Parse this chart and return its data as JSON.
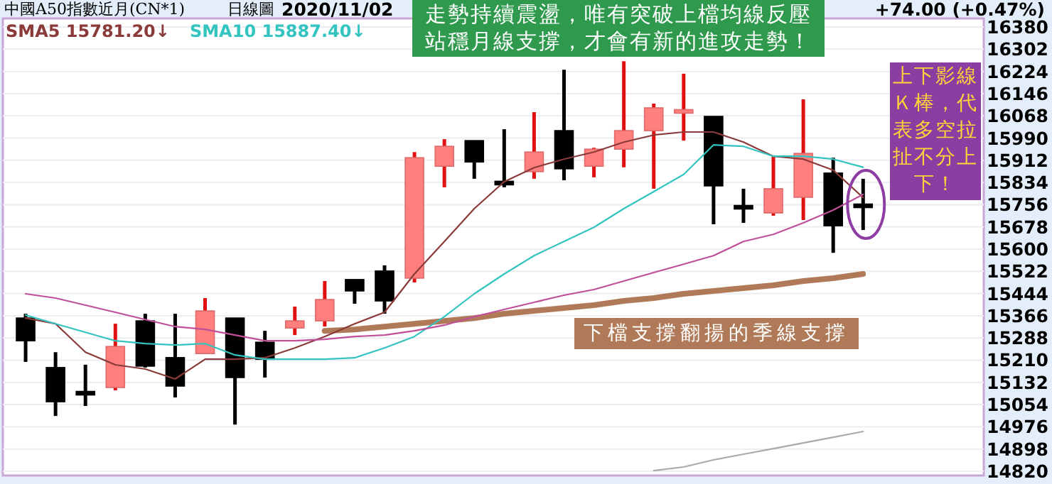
{
  "chart_data": {
    "type": "candlestick",
    "title": "中國A50指數近月(CN*1)",
    "subtitle": "日線圖",
    "categories": [
      null,
      null,
      null,
      null,
      null,
      null,
      null,
      null,
      null,
      null,
      null,
      null,
      null,
      null,
      null,
      null,
      null,
      null,
      null,
      null,
      null,
      null,
      null,
      null,
      null,
      null,
      null,
      null,
      null
    ],
    "ohlc": [
      [
        15358,
        15373,
        15204,
        15278
      ],
      [
        15184,
        15238,
        15014,
        15064
      ],
      [
        15096,
        15194,
        15049,
        15092
      ],
      [
        15114,
        15338,
        15104,
        15258
      ],
      [
        15348,
        15373,
        15184,
        15189
      ],
      [
        15219,
        15373,
        15079,
        15119
      ],
      [
        15233,
        15428,
        15233,
        15383
      ],
      [
        15358,
        15358,
        14984,
        15149
      ],
      [
        15273,
        15313,
        15149,
        15213
      ],
      [
        15323,
        15398,
        15298,
        15348
      ],
      [
        15348,
        15488,
        15328,
        15423
      ],
      [
        15493,
        15493,
        15408,
        15453
      ],
      [
        15523,
        15543,
        15373,
        15418
      ],
      [
        15498,
        15941,
        15483,
        15921
      ],
      [
        15891,
        15986,
        15817,
        15961
      ],
      [
        15981,
        15981,
        15847,
        15906
      ],
      [
        15834,
        16021,
        15817,
        15830
      ],
      [
        15872,
        16081,
        15847,
        15941
      ],
      [
        16016,
        16230,
        15842,
        15882
      ],
      [
        15891,
        15956,
        15852,
        15951
      ],
      [
        15951,
        16260,
        15887,
        16016
      ],
      [
        16016,
        16111,
        15812,
        16096
      ],
      [
        16081,
        16216,
        15981,
        16086
      ],
      [
        16066,
        16066,
        15687,
        15822
      ],
      [
        15749,
        15812,
        15692,
        15745
      ],
      [
        15727,
        15926,
        15717,
        15812
      ],
      [
        15782,
        16126,
        15702,
        15936
      ],
      [
        15867,
        15921,
        15587,
        15682
      ],
      [
        15754,
        15847,
        15667,
        15750
      ]
    ],
    "ylim": [
      14805,
      16410
    ],
    "yticks": [
      14820,
      14898,
      14976,
      15054,
      15132,
      15210,
      15288,
      15366,
      15444,
      15522,
      15600,
      15678,
      15756,
      15834,
      15912,
      15990,
      16068,
      16146,
      16224,
      16302,
      16380
    ],
    "grid": "y",
    "legend": "top left",
    "series": [
      {
        "name": "SMA5 15781.20↓",
        "type": "line",
        "color": "#8b3a3a",
        "values": [
          15358,
          15338,
          15238,
          15194,
          15179,
          15144,
          15213,
          15213,
          15218,
          15253,
          15293,
          15338,
          15378,
          15513,
          15627,
          15742,
          15837,
          15886,
          15916,
          15941,
          15976,
          16001,
          16011,
          16011,
          15976,
          15926,
          15916,
          15877,
          15781.2
        ]
      },
      {
        "name": "SMA10 15887.40↓",
        "type": "line",
        "color": "#33c4c0",
        "values": [
          15368,
          15338,
          15308,
          15278,
          15268,
          15263,
          15268,
          15228,
          15213,
          15213,
          15213,
          15218,
          15253,
          15293,
          15363,
          15443,
          15513,
          15577,
          15627,
          15677,
          15742,
          15802,
          15862,
          15966,
          15961,
          15926,
          15926,
          15916,
          15887.4
        ]
      },
      {
        "type": "line",
        "color": "#c04f9a",
        "values": [
          15443,
          15428,
          15403,
          15378,
          15353,
          15328,
          15318,
          15298,
          15278,
          15278,
          15283,
          15293,
          15298,
          15313,
          15333,
          15363,
          15388,
          15413,
          15438,
          15458,
          15488,
          15518,
          15547,
          15577,
          15627,
          15652,
          15692,
          15737,
          15792
        ]
      },
      {
        "type": "line",
        "color": "#b07a58",
        "values": [
          null,
          null,
          null,
          null,
          null,
          null,
          null,
          null,
          null,
          null,
          15313,
          15318,
          15328,
          15338,
          15348,
          15358,
          15373,
          15383,
          15393,
          15403,
          15418,
          15428,
          15443,
          15453,
          15463,
          15473,
          15488,
          15498,
          15513
        ]
      },
      {
        "type": "line",
        "color": "#aaaaaa",
        "values": [
          null,
          null,
          null,
          null,
          null,
          null,
          null,
          null,
          null,
          null,
          null,
          null,
          null,
          null,
          null,
          null,
          null,
          null,
          null,
          null,
          null,
          14822,
          14835,
          14860,
          14880,
          14899,
          14919,
          14939,
          14959.48
        ]
      }
    ],
    "annotations": [
      "2020/11/02",
      "+74.00 (+0.47%)",
      "走勢持續震盪，唯有突破上檔均線反壓站穩月線支撐，才會有新的進攻走勢！",
      "上下影線Ｋ棒，代表多空拉扯不分上下！",
      "下檔支撐翻揚的季線支撐"
    ]
  }
}
